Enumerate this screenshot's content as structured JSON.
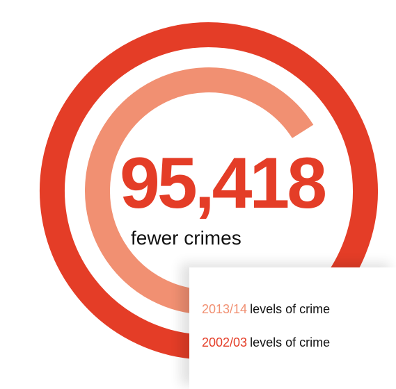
{
  "chart_data": {
    "type": "radial-bar",
    "headline_value": "95,418",
    "headline_label": "fewer crimes",
    "series": [
      {
        "name": "2013/14",
        "label": "levels of crime",
        "color": "#f19072",
        "fraction": 0.66
      },
      {
        "name": "2002/03",
        "label": "levels of crime",
        "color": "#e43d27",
        "fraction": 0.88
      }
    ],
    "legend_position": "bottom-right"
  }
}
